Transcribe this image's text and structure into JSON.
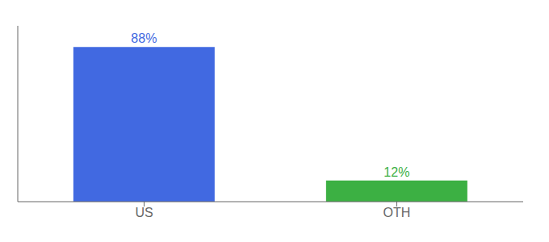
{
  "chart_data": {
    "type": "bar",
    "categories": [
      "US",
      "OTH"
    ],
    "values": [
      88,
      12
    ],
    "value_labels": [
      "88%",
      "12%"
    ],
    "colors": [
      "#4169e1",
      "#3cb043"
    ],
    "ylim": [
      0,
      100
    ],
    "data_labels": true,
    "tick_labels": "x",
    "grid": false
  }
}
